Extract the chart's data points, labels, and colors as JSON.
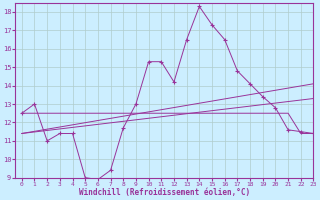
{
  "xlabel": "Windchill (Refroidissement éolien,°C)",
  "bg_color": "#cceeff",
  "grid_color": "#b0cccc",
  "line_color": "#993399",
  "x": [
    0,
    1,
    2,
    3,
    4,
    5,
    6,
    7,
    8,
    9,
    10,
    11,
    12,
    13,
    14,
    15,
    16,
    17,
    18,
    19,
    20,
    21,
    22,
    23
  ],
  "y_main": [
    12.5,
    13.0,
    11.0,
    11.4,
    11.4,
    9.0,
    8.9,
    9.4,
    11.7,
    13.0,
    15.3,
    15.3,
    14.2,
    16.5,
    18.3,
    17.3,
    16.5,
    14.8,
    14.1,
    13.4,
    12.8,
    11.6,
    11.5,
    11.4
  ],
  "y_flat": [
    12.5,
    12.5,
    12.5,
    12.5,
    12.5,
    12.5,
    12.5,
    12.5,
    12.5,
    12.5,
    12.5,
    12.5,
    12.5,
    12.5,
    12.5,
    12.5,
    12.5,
    12.5,
    12.5,
    12.5,
    12.5,
    12.5,
    11.4,
    11.4
  ],
  "trend2_x": [
    0,
    23
  ],
  "trend2_y": [
    11.4,
    14.1
  ],
  "trend3_x": [
    0,
    23
  ],
  "trend3_y": [
    11.4,
    13.3
  ],
  "ylim": [
    9,
    18.5
  ],
  "xlim": [
    -0.5,
    23
  ],
  "yticks": [
    9,
    10,
    11,
    12,
    13,
    14,
    15,
    16,
    17,
    18
  ],
  "xticks": [
    0,
    1,
    2,
    3,
    4,
    5,
    6,
    7,
    8,
    9,
    10,
    11,
    12,
    13,
    14,
    15,
    16,
    17,
    18,
    19,
    20,
    21,
    22,
    23
  ]
}
